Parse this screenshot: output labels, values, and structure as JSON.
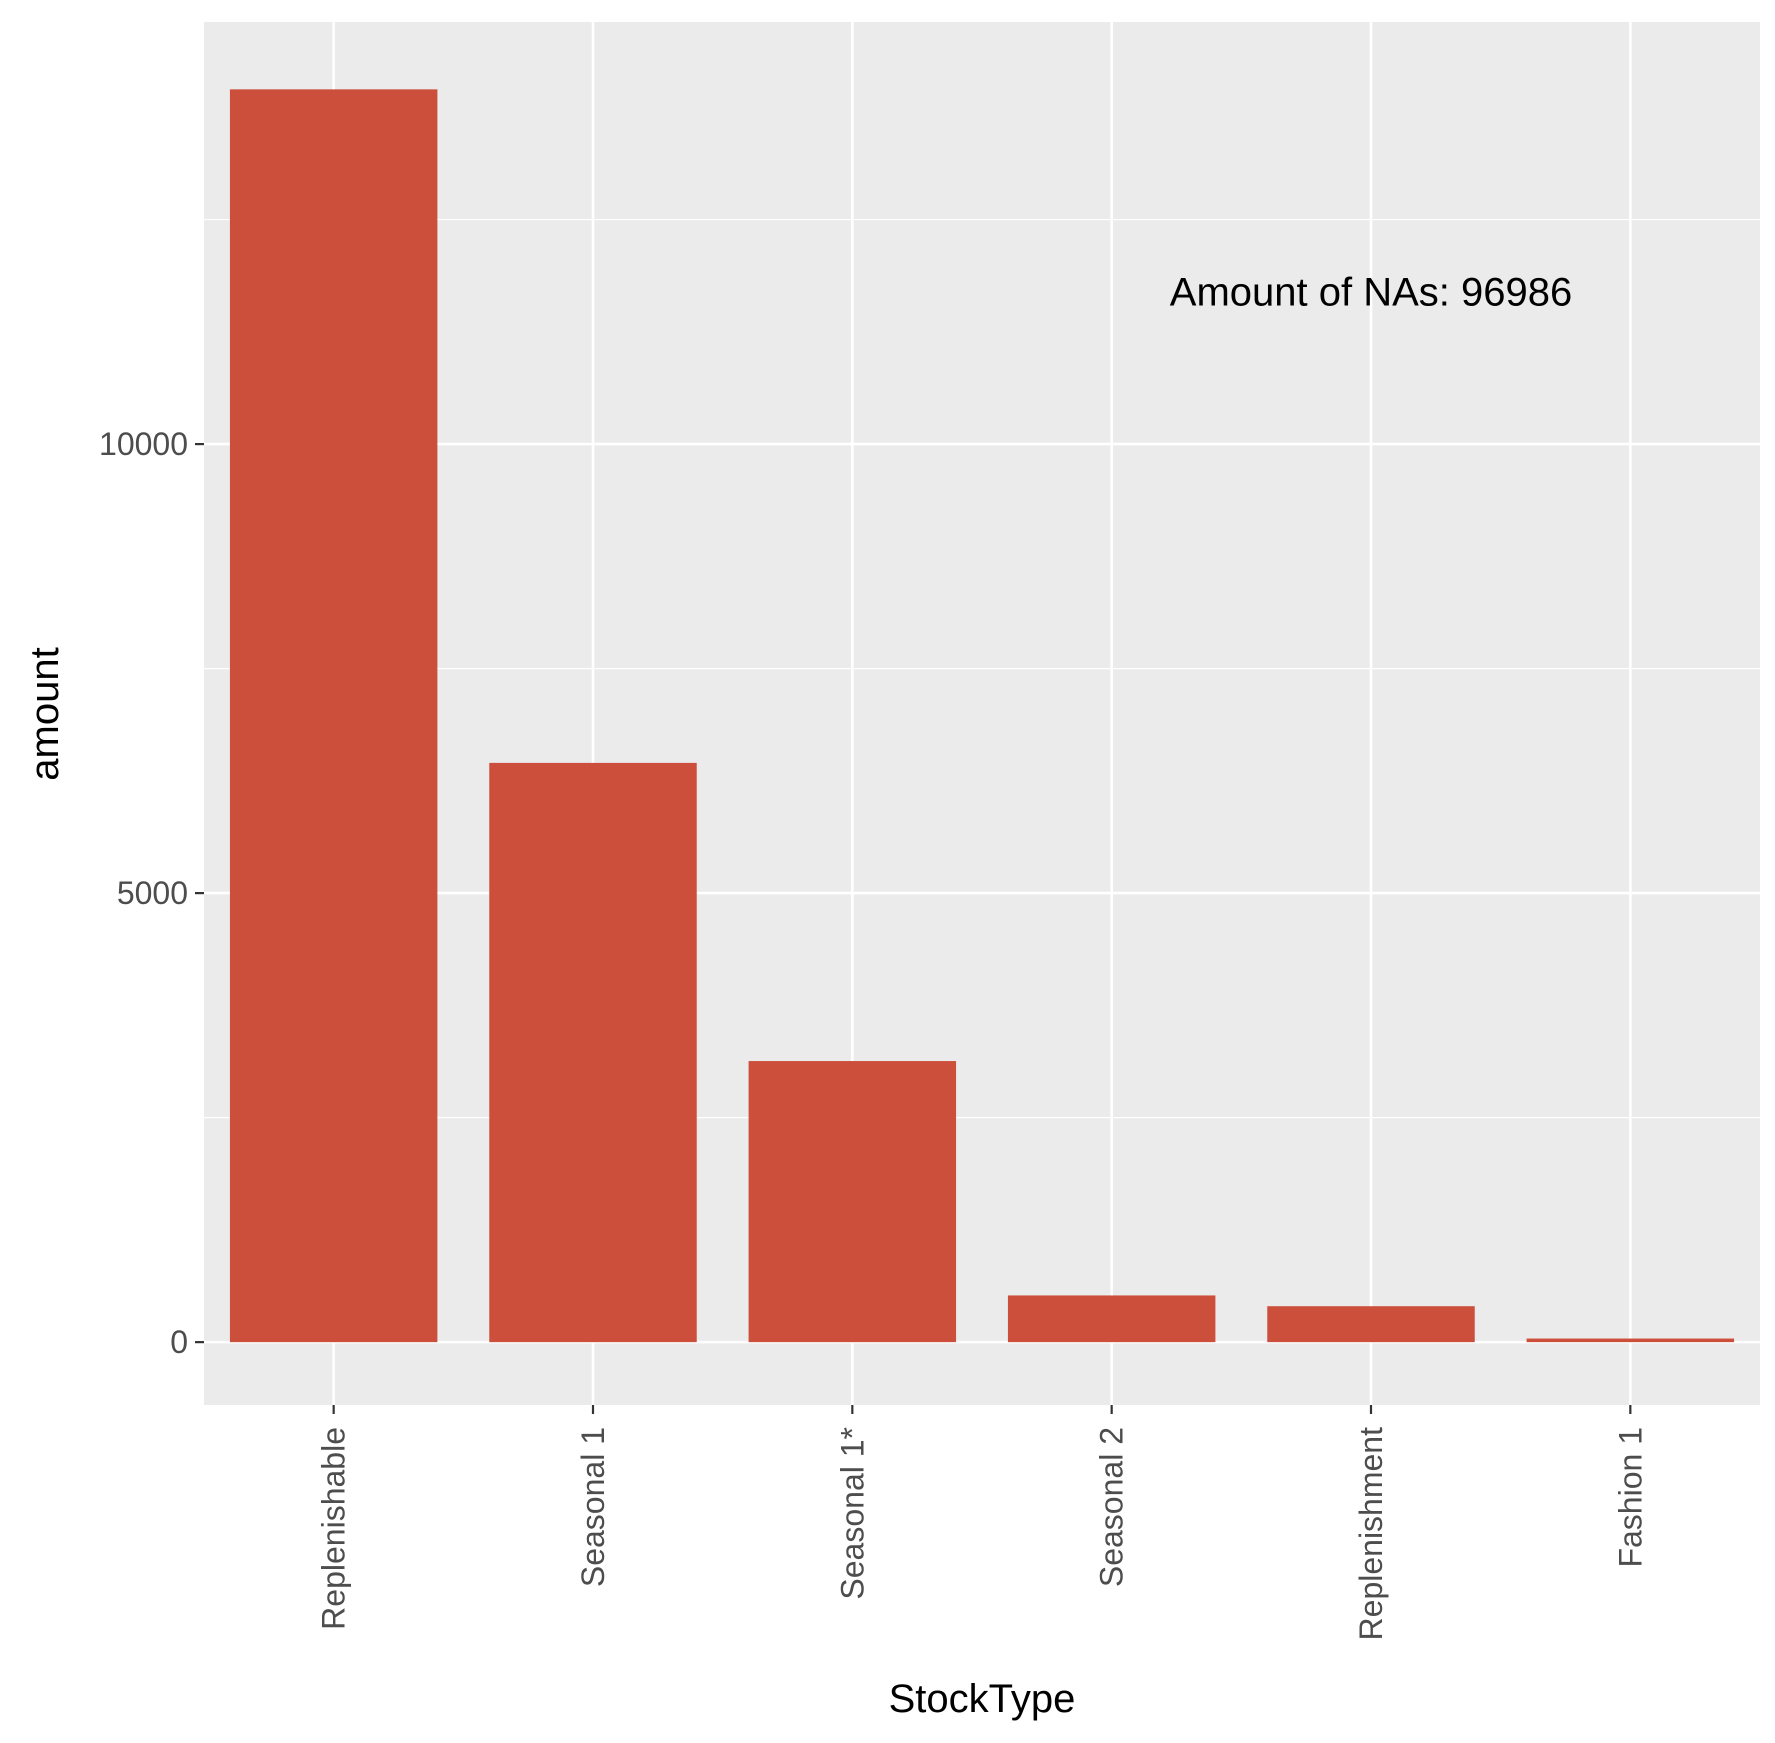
{
  "chart_data": {
    "type": "bar",
    "categories": [
      "Replenishable",
      "Seasonal 1",
      "Seasonal 1*",
      "Seasonal 2",
      "Replenishment",
      "Fashion 1"
    ],
    "values": [
      13950,
      6450,
      3130,
      520,
      400,
      40
    ],
    "xlabel": "StockType",
    "ylabel": "amount",
    "ylim": [
      -700,
      14700
    ],
    "yticks": [
      0,
      5000,
      10000
    ],
    "ytick_labels": [
      "0",
      "5000",
      "10000"
    ],
    "grid": true,
    "legend": "none",
    "annotation": {
      "text": "Amount of NAs: 96986",
      "category": "Replenishment",
      "value": 11700
    },
    "colors": {
      "bar": "#CB4F3B",
      "panel": "#EBEBEB",
      "grid": "#FFFFFF"
    }
  }
}
